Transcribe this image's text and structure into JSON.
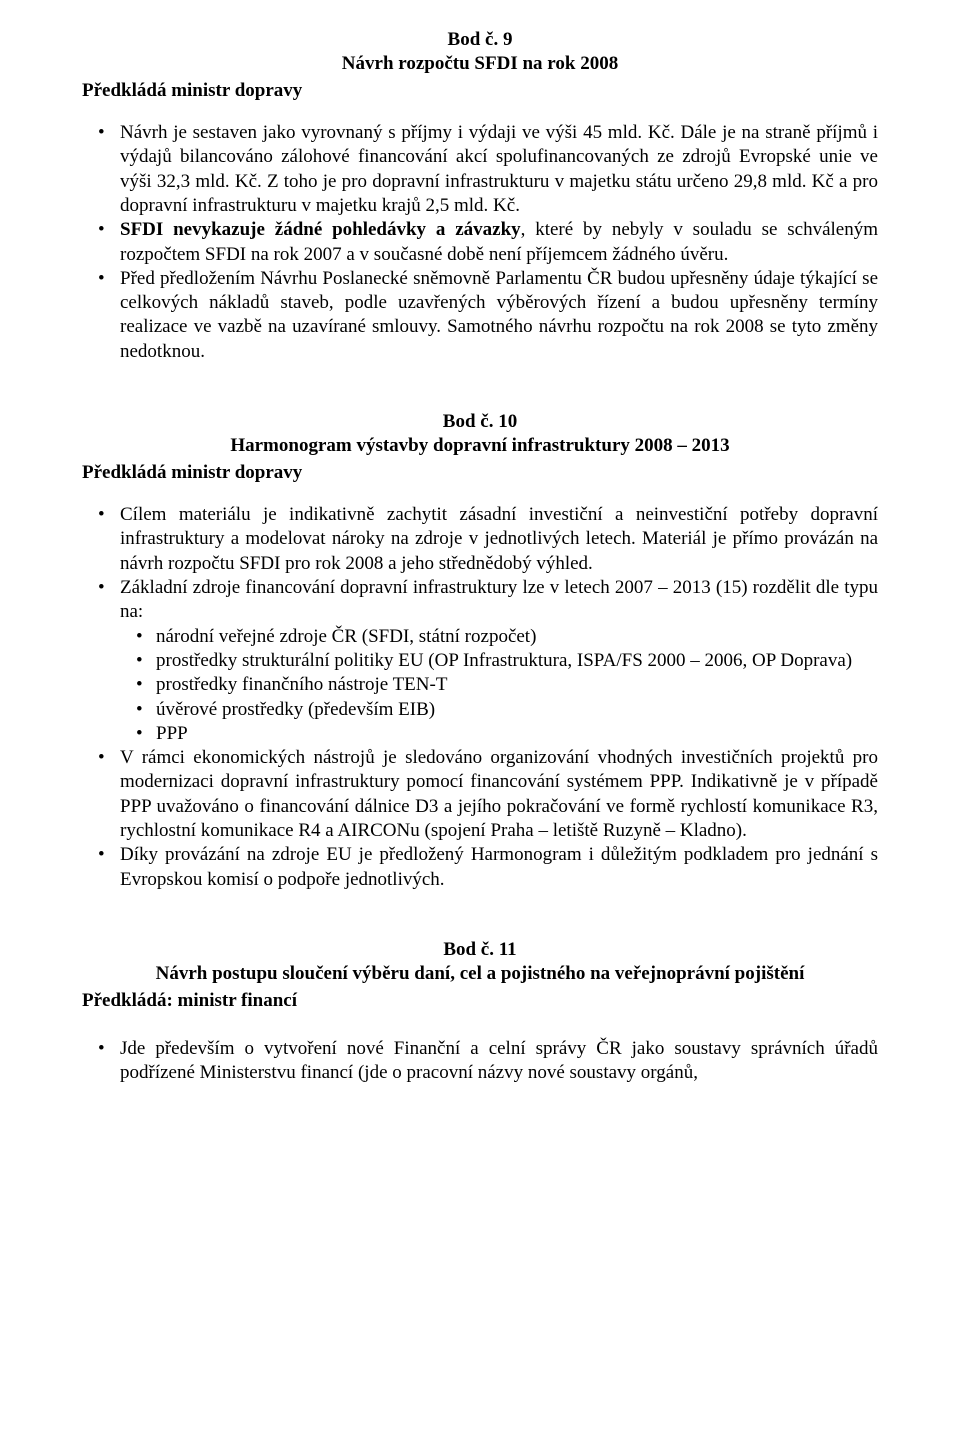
{
  "section9": {
    "heading": "Bod č. 9",
    "title": "Návrh rozpočtu SFDI na rok 2008",
    "presenter": "Předkládá ministr dopravy",
    "bullets": [
      {
        "pre": "Návrh je sestaven jako vyrovnaný s příjmy i výdaji ve výši 45 mld. Kč. Dále je na straně příjmů i výdajů bilancováno zálohové financování akcí spolufinancovaných ze zdrojů Evropské unie ve výši 32,3 mld. Kč. Z toho je pro dopravní infrastrukturu v majetku státu určeno 29,8 mld. Kč  a pro dopravní infrastrukturu v majetku krajů 2,5 mld. Kč."
      },
      {
        "bold_prefix": "SFDI  nevykazuje  žádné  pohledávky  a  závazky",
        "post": ",  které  by  nebyly  v souladu se schváleným rozpočtem SFDI na rok 2007 a v současné době není příjemcem žádného úvěru."
      },
      {
        "pre": "Před předložením Návrhu Poslanecké sněmovně Parlamentu ČR budou upřesněny údaje týkající se celkových nákladů staveb, podle uzavřených výběrových řízení a budou upřesněny termíny realizace ve vazbě na uzavírané smlouvy. Samotného návrhu rozpočtu na rok 2008 se tyto změny nedotknou."
      }
    ]
  },
  "section10": {
    "heading": "Bod č. 10",
    "title": "Harmonogram výstavby dopravní infrastruktury 2008 – 2013",
    "presenter": "Předkládá ministr dopravy",
    "bullets": [
      {
        "pre": "Cílem materiálu je indikativně zachytit zásadní investiční a neinvestiční potřeby dopravní infrastruktury a modelovat nároky na zdroje v jednotlivých letech. Materiál je přímo provázán na návrh rozpočtu SFDI pro rok 2008 a jeho střednědobý výhled."
      },
      {
        "pre": "Základní zdroje financování dopravní infrastruktury lze v letech 2007 – 2013 (15) rozdělit dle typu na:",
        "sub": [
          "národní veřejné zdroje ČR (SFDI, státní rozpočet)",
          "prostředky strukturální politiky EU (OP Infrastruktura, ISPA/FS 2000 – 2006, OP Doprava)",
          "prostředky finančního nástroje TEN-T",
          "úvěrové prostředky (především EIB)",
          "PPP"
        ]
      },
      {
        "pre": "V rámci ekonomických nástrojů je sledováno organizování vhodných investičních projektů pro modernizaci dopravní infrastruktury pomocí financování systémem PPP. Indikativně je v případě PPP uvažováno o financování dálnice D3 a jejího pokračování ve formě rychlostí komunikace  R3, rychlostní komunikace  R4 a AIRCONu (spojení Praha – letiště Ruzyně – Kladno)."
      },
      {
        "pre": "Díky provázání na zdroje EU je předložený Harmonogram i důležitým podkladem pro jednání s Evropskou komisí o podpoře jednotlivých."
      }
    ]
  },
  "section11": {
    "heading": "Bod č. 11",
    "title": "Návrh postupu sloučení výběru daní, cel a pojistného na veřejnoprávní pojištění",
    "presenter": "Předkládá: ministr financí",
    "bullets": [
      {
        "pre": "Jde především o vytvoření nové Finanční a celní správy ČR jako soustavy správních úřadů podřízené Ministerstvu financí (jde o pracovní názvy nové soustavy orgánů,"
      }
    ]
  }
}
